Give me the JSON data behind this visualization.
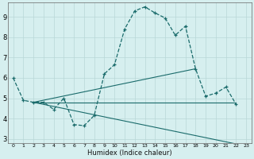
{
  "xlabel": "Humidex (Indice chaleur)",
  "bg_color": "#d6efef",
  "grid_color": "#b8d8d8",
  "line_color": "#1a6b6b",
  "xlim": [
    -0.5,
    23.5
  ],
  "ylim": [
    2.8,
    9.7
  ],
  "xticks": [
    0,
    1,
    2,
    3,
    4,
    5,
    6,
    7,
    8,
    9,
    10,
    11,
    12,
    13,
    14,
    15,
    16,
    17,
    18,
    19,
    20,
    21,
    22,
    23
  ],
  "yticks": [
    3,
    4,
    5,
    6,
    7,
    8,
    9
  ],
  "curve": {
    "x": [
      0,
      1,
      2,
      3,
      4,
      5,
      6,
      7,
      8,
      9,
      10,
      11,
      12,
      13,
      14,
      15,
      16,
      17,
      18,
      19,
      20,
      21,
      22
    ],
    "y": [
      6.0,
      4.9,
      4.8,
      4.8,
      4.45,
      5.0,
      3.7,
      3.65,
      4.15,
      6.2,
      6.65,
      8.4,
      9.3,
      9.5,
      9.2,
      8.95,
      8.1,
      8.55,
      6.45,
      5.1,
      5.25,
      5.55,
      4.7
    ]
  },
  "line1": {
    "x": [
      2,
      22
    ],
    "y": [
      4.8,
      4.8
    ]
  },
  "line2": {
    "x": [
      2,
      18
    ],
    "y": [
      4.8,
      6.45
    ]
  },
  "line3": {
    "x": [
      2,
      22
    ],
    "y": [
      4.8,
      2.75
    ]
  }
}
